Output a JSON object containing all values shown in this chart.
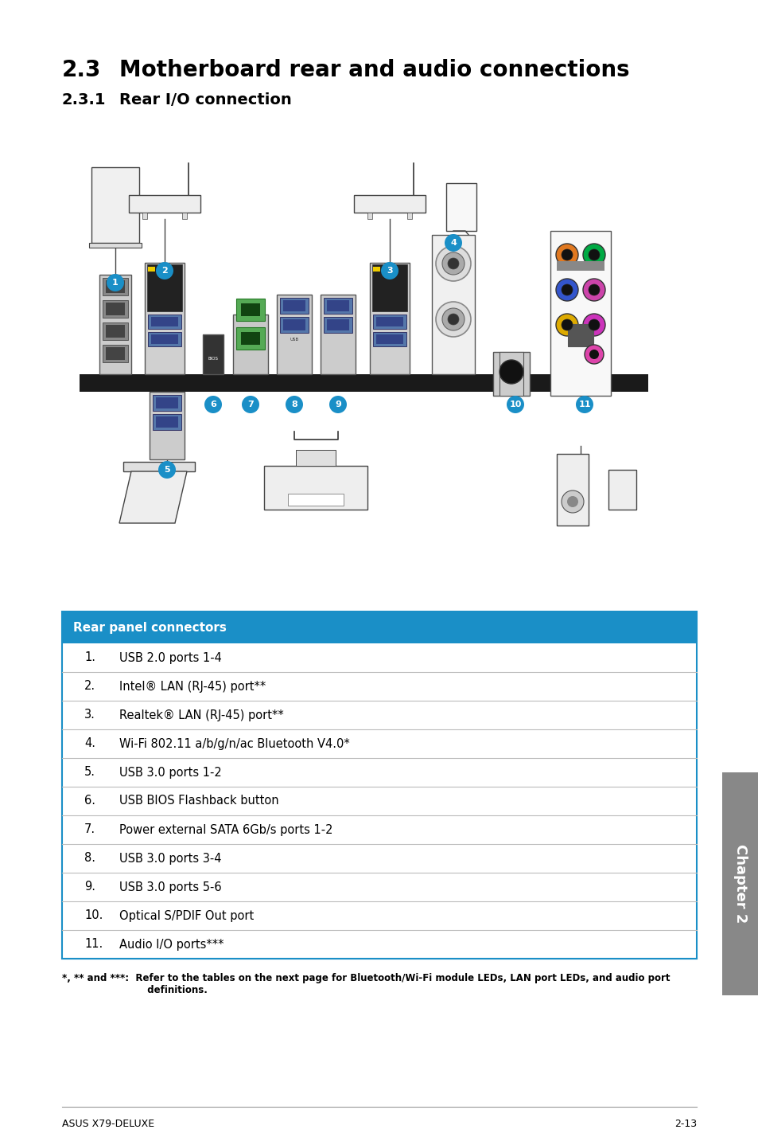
{
  "title_section": "2.3",
  "title_text": "Motherboard rear and audio connections",
  "subtitle_section": "2.3.1",
  "subtitle_text": "Rear I/O connection",
  "table_header": "Rear panel connectors",
  "table_header_bg": "#1a8fc7",
  "table_header_color": "#ffffff",
  "table_rows": [
    [
      "1.",
      "USB 2.0 ports 1-4"
    ],
    [
      "2.",
      "Intel® LAN (RJ-45) port**"
    ],
    [
      "3.",
      "Realtek® LAN (RJ-45) port**"
    ],
    [
      "4.",
      "Wi-Fi 802.11 a/b/g/n/ac Bluetooth V4.0*"
    ],
    [
      "5.",
      "USB 3.0 ports 1-2"
    ],
    [
      "6.",
      "USB BIOS Flashback button"
    ],
    [
      "7.",
      "Power external SATA 6Gb/s ports 1-2"
    ],
    [
      "8.",
      "USB 3.0 ports 3-4"
    ],
    [
      "9.",
      "USB 3.0 ports 5-6"
    ],
    [
      "10.",
      "Optical S/PDIF Out port"
    ],
    [
      "11.",
      "Audio I/O ports***"
    ]
  ],
  "footnote_bold": "*, ** and ***:",
  "footnote_text": "  Refer to the tables on the next page for Bluetooth/Wi-Fi module LEDs, LAN port LEDs, and audio port\n             definitions.",
  "footer_left": "ASUS X79-DELUXE",
  "footer_right": "2-13",
  "chapter_tab": "Chapter 2",
  "bg_color": "#ffffff",
  "table_border_color": "#1a8fc7",
  "table_line_color": "#bbbbbb",
  "bubble_color": "#1a8fc7",
  "panel_bar_color": "#2a2a2a",
  "audio_colors": [
    "#e07820",
    "#00aa44",
    "#3355cc",
    "#cc44aa",
    "#ddaa00",
    "#cc33bb"
  ]
}
